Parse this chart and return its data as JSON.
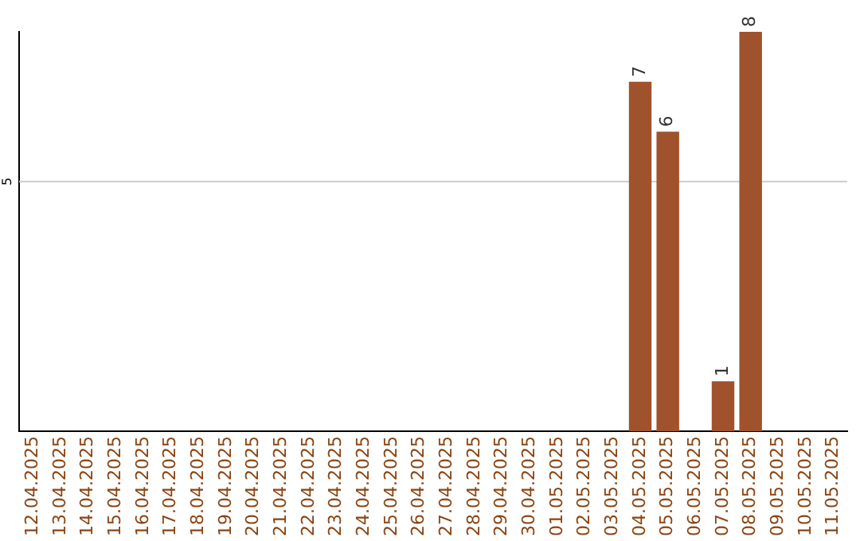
{
  "chart_data": {
    "type": "bar",
    "categories": [
      "12.04.2025",
      "13.04.2025",
      "14.04.2025",
      "15.04.2025",
      "16.04.2025",
      "17.04.2025",
      "18.04.2025",
      "19.04.2025",
      "20.04.2025",
      "21.04.2025",
      "22.04.2025",
      "23.04.2025",
      "24.04.2025",
      "25.04.2025",
      "26.04.2025",
      "27.04.2025",
      "28.04.2025",
      "29.04.2025",
      "30.04.2025",
      "01.05.2025",
      "02.05.2025",
      "03.05.2025",
      "04.05.2025",
      "05.05.2025",
      "06.05.2025",
      "07.05.2025",
      "08.05.2025",
      "09.05.2025",
      "10.05.2025",
      "11.05.2025"
    ],
    "values": [
      null,
      null,
      null,
      null,
      null,
      null,
      null,
      null,
      null,
      null,
      null,
      null,
      null,
      null,
      null,
      null,
      null,
      null,
      null,
      null,
      null,
      null,
      7,
      6,
      null,
      1,
      8,
      null,
      null,
      null
    ],
    "data_labels": true,
    "color": "#a0522d",
    "ref_lines": [
      {
        "axis": "y",
        "value": 5,
        "label": "5",
        "color": "#cccccc"
      }
    ],
    "grid": false,
    "legend": false
  }
}
